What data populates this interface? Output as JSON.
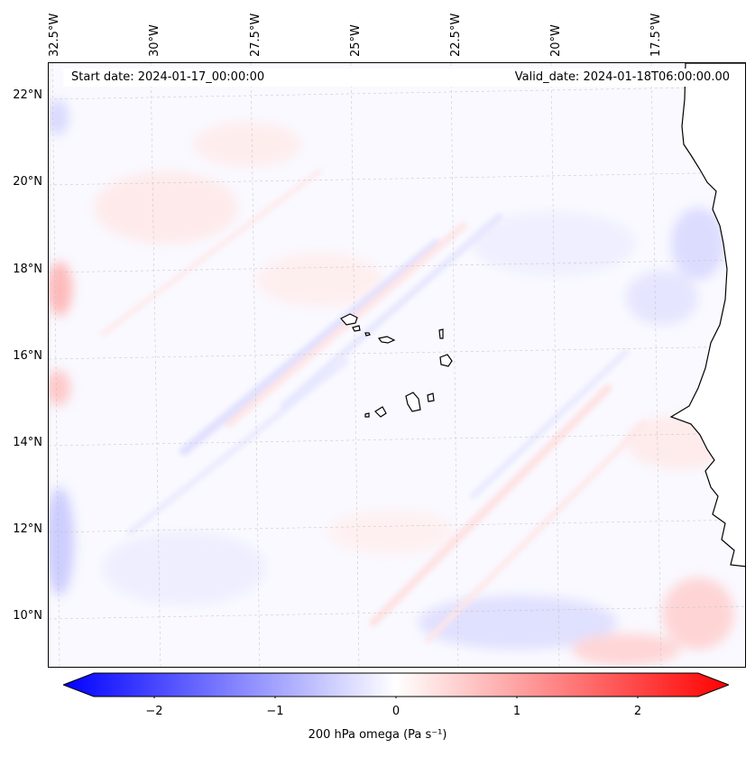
{
  "header": {
    "start_date": "Start date: 2024-01-17_00:00:00",
    "valid_date": "Valid_date: 2024-01-18T06:00:00.00"
  },
  "axes": {
    "lon_labels": [
      "32.5°W",
      "30°W",
      "27.5°W",
      "25°W",
      "22.5°W",
      "20°W",
      "17.5°W"
    ],
    "lat_labels": [
      "22°N",
      "20°N",
      "18°N",
      "16°N",
      "14°N",
      "12°N",
      "10°N"
    ]
  },
  "colorbar": {
    "ticks": [
      "−2",
      "−1",
      "0",
      "1",
      "2"
    ],
    "label": "200 hPa omega (Pa s⁻¹)",
    "min_color": "#0000ff",
    "mid_color": "#ffffff",
    "max_color": "#ff0000"
  },
  "map": {
    "land_color": "#ffffff",
    "coastline_color": "#000000",
    "gridline_color": "#bfbfbf"
  }
}
